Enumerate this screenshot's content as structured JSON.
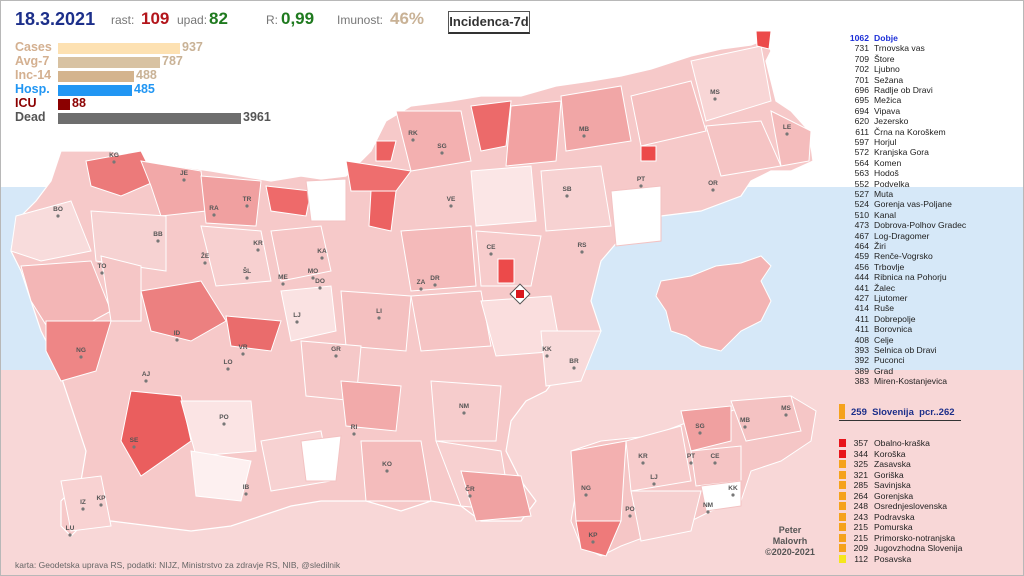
{
  "header": {
    "date": "18.3.2021",
    "rast_label": "rast:",
    "rast_value": "109",
    "upad_label": "upad:",
    "upad_value": "82",
    "r_label": "R:",
    "r_value": "0,99",
    "imunost_label": "Imunost:",
    "imunost_value": "46%",
    "tab_label": "Incidenca-7d"
  },
  "stats": [
    {
      "label": "Cases",
      "value": "937",
      "fraction": 1.0,
      "color": "#fde1b2",
      "label_color": "#d4b090"
    },
    {
      "label": "Avg-7",
      "value": "787",
      "fraction": 0.84,
      "color": "#d8c2a2",
      "label_color": "#d4b090"
    },
    {
      "label": "Inc-14",
      "value": "488",
      "fraction": 0.62,
      "color": "#d4b48e",
      "label_color": "#d4b090"
    },
    {
      "label": "Hosp.",
      "value": "485",
      "fraction": 0.61,
      "color": "#2196f3",
      "label_color": "#2196f3"
    },
    {
      "label": "ICU",
      "value": "88",
      "fraction": 0.1,
      "color": "#8b0000",
      "label_color": "#8b0000"
    },
    {
      "label": "Dead",
      "value": "3961",
      "fraction": 1.5,
      "color": "#6e6e6e",
      "label_color": "#555555"
    }
  ],
  "ranking": [
    {
      "n": "1062",
      "name": "Dobje",
      "top": true
    },
    {
      "n": "731",
      "name": "Trnovska vas"
    },
    {
      "n": "709",
      "name": "Štore"
    },
    {
      "n": "702",
      "name": "Ljubno"
    },
    {
      "n": "701",
      "name": "Sežana"
    },
    {
      "n": "696",
      "name": "Radlje ob Dravi"
    },
    {
      "n": "695",
      "name": "Mežica"
    },
    {
      "n": "694",
      "name": "Vipava"
    },
    {
      "n": "620",
      "name": "Jezersko"
    },
    {
      "n": "611",
      "name": "Črna na Koroškem"
    },
    {
      "n": "597",
      "name": "Horjul"
    },
    {
      "n": "572",
      "name": "Kranjska Gora"
    },
    {
      "n": "564",
      "name": "Komen"
    },
    {
      "n": "563",
      "name": "Hodoš"
    },
    {
      "n": "552",
      "name": "Podvelka"
    },
    {
      "n": "527",
      "name": "Muta"
    },
    {
      "n": "524",
      "name": "Gorenja vas-Poljane"
    },
    {
      "n": "510",
      "name": "Kanal"
    },
    {
      "n": "473",
      "name": "Dobrova-Polhov Gradec"
    },
    {
      "n": "467",
      "name": "Log-Dragomer"
    },
    {
      "n": "464",
      "name": "Žiri"
    },
    {
      "n": "459",
      "name": "Renče-Vogrsko"
    },
    {
      "n": "456",
      "name": "Trbovlje"
    },
    {
      "n": "444",
      "name": "Ribnica na Pohorju"
    },
    {
      "n": "441",
      "name": "Žalec"
    },
    {
      "n": "427",
      "name": "Ljutomer"
    },
    {
      "n": "414",
      "name": "Ruše"
    },
    {
      "n": "411",
      "name": "Dobrepolje"
    },
    {
      "n": "411",
      "name": "Borovnica"
    },
    {
      "n": "408",
      "name": "Celje"
    },
    {
      "n": "393",
      "name": "Selnica ob Dravi"
    },
    {
      "n": "392",
      "name": "Puconci"
    },
    {
      "n": "389",
      "name": "Grad"
    },
    {
      "n": "383",
      "name": "Miren-Kostanjevica"
    }
  ],
  "slovenia": {
    "value": "259",
    "label": "Slovenija",
    "suffix": "pcr..262",
    "color": "#f5a21c"
  },
  "regions": [
    {
      "n": "357",
      "name": "Obalno-kraška",
      "color": "#e8141a"
    },
    {
      "n": "344",
      "name": "Koroška",
      "color": "#e8141a"
    },
    {
      "n": "325",
      "name": "Zasavska",
      "color": "#f5a21c"
    },
    {
      "n": "321",
      "name": "Goriška",
      "color": "#f5a21c"
    },
    {
      "n": "285",
      "name": "Savinjska",
      "color": "#f5a21c"
    },
    {
      "n": "264",
      "name": "Gorenjska",
      "color": "#f5a21c"
    },
    {
      "n": "248",
      "name": "Osrednjeslovenska",
      "color": "#f5a21c"
    },
    {
      "n": "243",
      "name": "Podravska",
      "color": "#f5a21c"
    },
    {
      "n": "215",
      "name": "Pomurska",
      "color": "#f5a21c"
    },
    {
      "n": "215",
      "name": "Primorsko-notranjska",
      "color": "#f5a21c"
    },
    {
      "n": "209",
      "name": "Jugovzhodna Slovenija",
      "color": "#f5a21c"
    },
    {
      "n": "112",
      "name": "Posavska",
      "color": "#f5e61c"
    }
  ],
  "unit_codes": [
    "KG",
    "JE",
    "RA",
    "TR",
    "BO",
    "BB",
    "ŽE",
    "KR",
    "ŠL",
    "ME",
    "KA",
    "MO",
    "DO",
    "ZA",
    "TO",
    "LJ",
    "LI",
    "ID",
    "VR",
    "AJ",
    "LO",
    "GR",
    "NG",
    "PO",
    "SE",
    "IZ",
    "KP",
    "LU",
    "IB",
    "KO",
    "NM",
    "RI",
    "ČR",
    "MS",
    "LE",
    "RK",
    "SG",
    "MB",
    "PT",
    "OR",
    "VE",
    "SB",
    "RS",
    "CE",
    "KK",
    "BR",
    "DR"
  ],
  "inset_codes": [
    "MS",
    "SG",
    "MB",
    "KR",
    "PT",
    "LJ",
    "CE",
    "NG",
    "NM",
    "KK",
    "KP",
    "PO"
  ],
  "credit": {
    "line1": "Peter",
    "line2": "Malovrh",
    "line3": "©2020-2021"
  },
  "source": "karta: Geodetska uprava RS, podatki: NIJZ, Ministrstvo za zdravje RS, NIB, @sledilnik",
  "colors": {
    "date": "#1c2f8a",
    "rast": "#b3151b",
    "upad": "#1f7a1f",
    "r_value": "#1f7a1f",
    "imunost": "#c9b296"
  }
}
